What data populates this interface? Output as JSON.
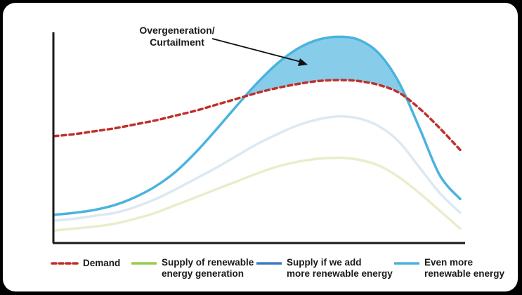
{
  "chart_data": {
    "type": "line",
    "title": "",
    "xlabel": "",
    "ylabel": "",
    "x": [
      0,
      1,
      2,
      3,
      4,
      5,
      6,
      7,
      8,
      9,
      10,
      11,
      12,
      13,
      14,
      15,
      16,
      17,
      18,
      19,
      20
    ],
    "xlim": [
      0,
      20
    ],
    "ylim": [
      0,
      100
    ],
    "grid": false,
    "series": [
      {
        "name": "Demand",
        "style": "dashed",
        "color": "#c0302a",
        "values": [
          54,
          55,
          56.5,
          58,
          60,
          62,
          64.5,
          67,
          70,
          73,
          76,
          78.5,
          80.5,
          82,
          82.5,
          82,
          80,
          76,
          68,
          58,
          47
        ]
      },
      {
        "name": "Supply of renewable energy generation",
        "style": "solid",
        "color": "#e8eecc",
        "values": [
          6,
          7,
          8,
          9.5,
          12,
          15,
          19,
          23,
          27,
          31,
          35,
          38.5,
          41,
          42.5,
          43,
          42,
          39,
          33,
          25,
          16,
          7
        ]
      },
      {
        "name": "Supply if we add more renewable energy",
        "style": "solid",
        "color": "#dce9f2",
        "values": [
          11,
          12,
          13.5,
          15,
          18,
          22,
          27,
          32.5,
          38,
          44,
          50,
          55,
          59.5,
          62.5,
          64,
          63,
          59,
          51,
          38,
          25,
          15
        ]
      },
      {
        "name": "Even more renewable energy",
        "style": "solid",
        "color": "#4ab3de",
        "values": [
          14,
          15,
          16.5,
          19,
          23,
          28.5,
          36,
          46,
          57.5,
          69.5,
          81,
          91,
          98.5,
          103,
          104.5,
          103,
          96,
          81,
          58,
          34,
          22
        ]
      }
    ],
    "annotations": [
      {
        "text": "Overgeneration/ Curtailment",
        "points_to": "shaded area between Even more renewable energy and Demand",
        "x": 13,
        "y": 92
      }
    ],
    "shaded_region": {
      "between": [
        "Even more renewable energy",
        "Demand"
      ],
      "where": "Even more renewable energy > Demand",
      "color": "#87cde9"
    },
    "legend_position": "bottom"
  },
  "annotation": {
    "line1": "Overgeneration/",
    "line2": "Curtailment"
  },
  "legend": [
    {
      "label": "Demand",
      "style": "dashed",
      "color": "#c0302a"
    },
    {
      "label": "Supply of renewable\nenergy generation",
      "style": "solid",
      "color": "#9acb4a"
    },
    {
      "label": "Supply if we add\nmore renewable energy",
      "style": "solid",
      "color": "#3a7fc3"
    },
    {
      "label": "Even more\nrenewable energy",
      "style": "solid",
      "color": "#4ab3de"
    }
  ]
}
